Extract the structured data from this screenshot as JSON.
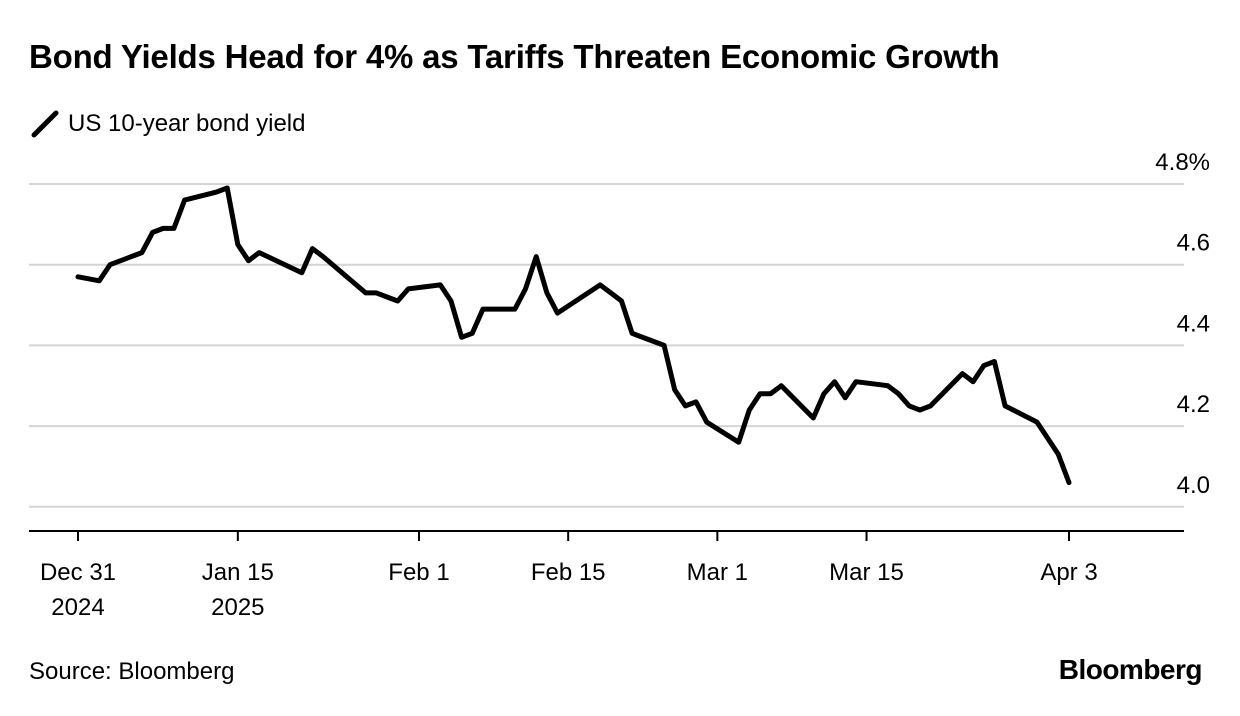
{
  "header": {
    "title": "Bond Yields Head for 4% as Tariffs Threaten Economic Growth"
  },
  "footer": {
    "source": "Source: Bloomberg",
    "brand": "Bloomberg"
  },
  "chart_data": {
    "type": "line",
    "title": "Bond Yields Head for 4% as Tariffs Threaten Economic Growth",
    "xlabel": "",
    "ylabel": "",
    "ylim": [
      3.94,
      4.8
    ],
    "grid": true,
    "legend_position": "top-left",
    "x_ticks": [
      {
        "date": "2024-12-31",
        "lines": [
          "Dec 31",
          "2024"
        ]
      },
      {
        "date": "2025-01-15",
        "lines": [
          "Jan 15",
          "2025"
        ]
      },
      {
        "date": "2025-02-01",
        "lines": [
          "Feb 1"
        ]
      },
      {
        "date": "2025-02-15",
        "lines": [
          "Feb 15"
        ]
      },
      {
        "date": "2025-03-01",
        "lines": [
          "Mar 1"
        ]
      },
      {
        "date": "2025-03-15",
        "lines": [
          "Mar 15"
        ]
      },
      {
        "date": "2025-04-03",
        "lines": [
          "Apr 3"
        ]
      }
    ],
    "y_ticks": [
      {
        "value": 4.0,
        "label": "4.0"
      },
      {
        "value": 4.2,
        "label": "4.2"
      },
      {
        "value": 4.4,
        "label": "4.4"
      },
      {
        "value": 4.6,
        "label": "4.6"
      },
      {
        "value": 4.8,
        "label": "4.8%"
      }
    ],
    "series": [
      {
        "name": "US 10-year bond yield",
        "color": "#000000",
        "points": [
          [
            "2024-12-31",
            4.57
          ],
          [
            "2025-01-02",
            4.56
          ],
          [
            "2025-01-03",
            4.6
          ],
          [
            "2025-01-06",
            4.63
          ],
          [
            "2025-01-07",
            4.68
          ],
          [
            "2025-01-08",
            4.69
          ],
          [
            "2025-01-09",
            4.69
          ],
          [
            "2025-01-10",
            4.76
          ],
          [
            "2025-01-13",
            4.78
          ],
          [
            "2025-01-14",
            4.79
          ],
          [
            "2025-01-15",
            4.65
          ],
          [
            "2025-01-16",
            4.61
          ],
          [
            "2025-01-17",
            4.63
          ],
          [
            "2025-01-21",
            4.58
          ],
          [
            "2025-01-22",
            4.64
          ],
          [
            "2025-01-23",
            4.62
          ],
          [
            "2025-01-27",
            4.53
          ],
          [
            "2025-01-28",
            4.53
          ],
          [
            "2025-01-29",
            4.52
          ],
          [
            "2025-01-30",
            4.51
          ],
          [
            "2025-01-31",
            4.54
          ],
          [
            "2025-02-03",
            4.55
          ],
          [
            "2025-02-04",
            4.51
          ],
          [
            "2025-02-05",
            4.42
          ],
          [
            "2025-02-06",
            4.43
          ],
          [
            "2025-02-07",
            4.49
          ],
          [
            "2025-02-10",
            4.49
          ],
          [
            "2025-02-11",
            4.54
          ],
          [
            "2025-02-12",
            4.62
          ],
          [
            "2025-02-13",
            4.53
          ],
          [
            "2025-02-14",
            4.48
          ],
          [
            "2025-02-18",
            4.55
          ],
          [
            "2025-02-19",
            4.53
          ],
          [
            "2025-02-20",
            4.51
          ],
          [
            "2025-02-21",
            4.43
          ],
          [
            "2025-02-24",
            4.4
          ],
          [
            "2025-02-25",
            4.29
          ],
          [
            "2025-02-26",
            4.25
          ],
          [
            "2025-02-27",
            4.26
          ],
          [
            "2025-02-28",
            4.21
          ],
          [
            "2025-03-03",
            4.16
          ],
          [
            "2025-03-04",
            4.24
          ],
          [
            "2025-03-05",
            4.28
          ],
          [
            "2025-03-06",
            4.28
          ],
          [
            "2025-03-07",
            4.3
          ],
          [
            "2025-03-10",
            4.22
          ],
          [
            "2025-03-11",
            4.28
          ],
          [
            "2025-03-12",
            4.31
          ],
          [
            "2025-03-13",
            4.27
          ],
          [
            "2025-03-14",
            4.31
          ],
          [
            "2025-03-17",
            4.3
          ],
          [
            "2025-03-18",
            4.28
          ],
          [
            "2025-03-19",
            4.25
          ],
          [
            "2025-03-20",
            4.24
          ],
          [
            "2025-03-21",
            4.25
          ],
          [
            "2025-03-24",
            4.33
          ],
          [
            "2025-03-25",
            4.31
          ],
          [
            "2025-03-26",
            4.35
          ],
          [
            "2025-03-27",
            4.36
          ],
          [
            "2025-03-28",
            4.25
          ],
          [
            "2025-03-31",
            4.21
          ],
          [
            "2025-04-01",
            4.17
          ],
          [
            "2025-04-02",
            4.13
          ],
          [
            "2025-04-03",
            4.06
          ]
        ]
      }
    ]
  }
}
